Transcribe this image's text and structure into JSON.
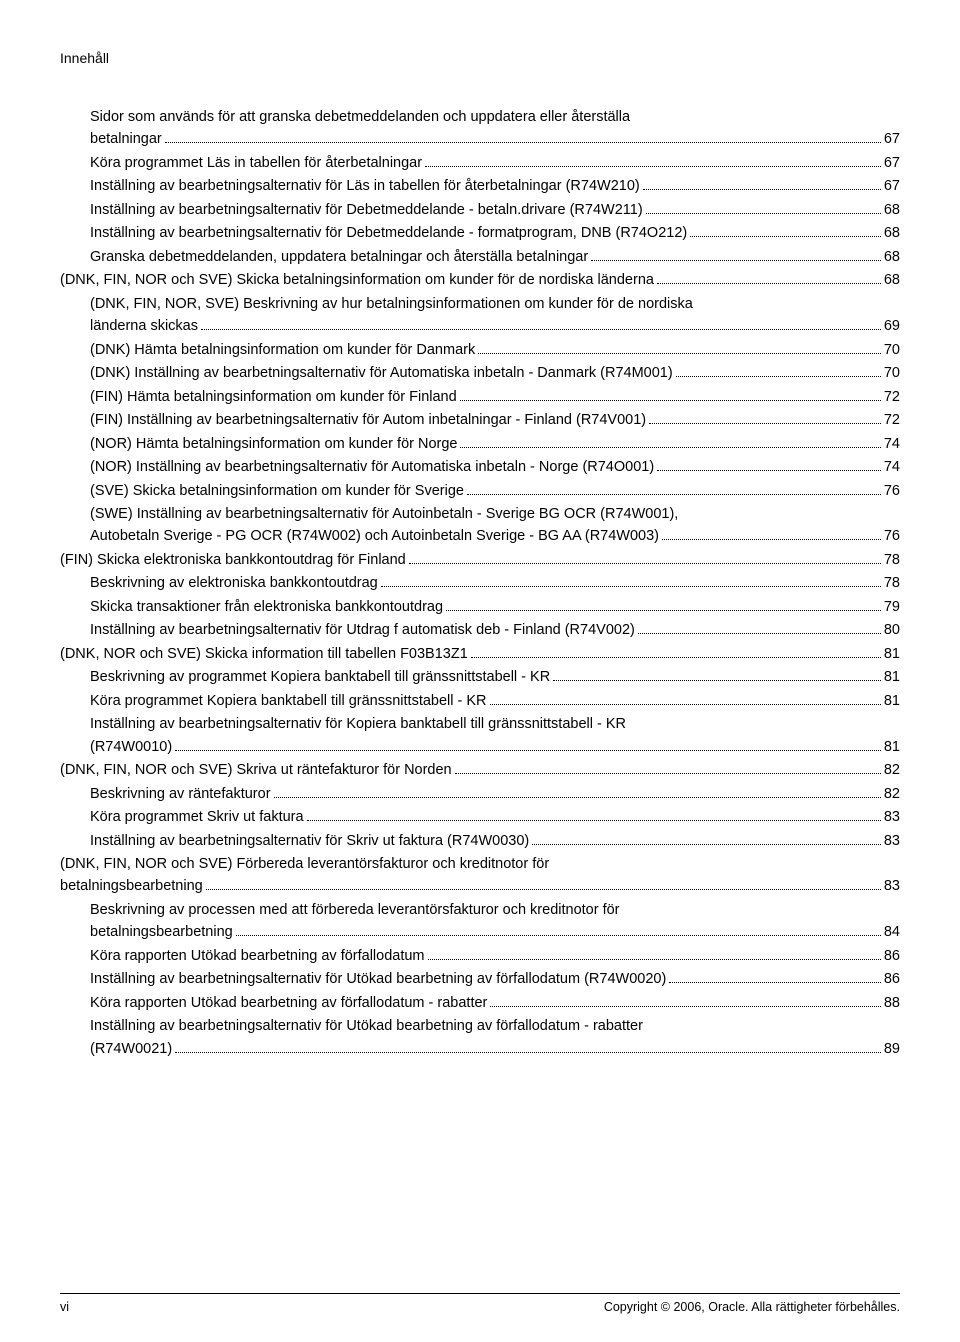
{
  "header": "Innehåll",
  "entries": [
    {
      "indent": 1,
      "text": "Sidor som används för att granska debetmeddelanden och uppdatera eller återställa",
      "wrap": true
    },
    {
      "indent": 1,
      "text": "betalningar",
      "page": "67"
    },
    {
      "indent": 1,
      "text": "Köra programmet Läs in tabellen för återbetalningar",
      "page": "67"
    },
    {
      "indent": 1,
      "text": "Inställning av bearbetningsalternativ för Läs in tabellen för återbetalningar (R74W210)",
      "page": "67"
    },
    {
      "indent": 1,
      "text": "Inställning av bearbetningsalternativ för Debetmeddelande - betaln.drivare (R74W211)",
      "page": "68"
    },
    {
      "indent": 1,
      "text": "Inställning av bearbetningsalternativ för Debetmeddelande - formatprogram, DNB (R74O212)",
      "page": "68"
    },
    {
      "indent": 1,
      "text": "Granska debetmeddelanden, uppdatera betalningar och återställa betalningar",
      "page": "68"
    },
    {
      "indent": 0,
      "text": "(DNK, FIN, NOR och SVE) Skicka betalningsinformation om kunder för de nordiska länderna",
      "page": "68"
    },
    {
      "indent": 1,
      "text": "(DNK, FIN, NOR, SVE) Beskrivning av hur betalningsinformationen om kunder för de nordiska",
      "wrap": true
    },
    {
      "indent": 1,
      "text": "länderna skickas",
      "page": "69"
    },
    {
      "indent": 1,
      "text": "(DNK) Hämta betalningsinformation om kunder för Danmark",
      "page": "70"
    },
    {
      "indent": 1,
      "text": "(DNK) Inställning av bearbetningsalternativ för Automatiska inbetaln - Danmark (R74M001)",
      "page": "70"
    },
    {
      "indent": 1,
      "text": "(FIN) Hämta betalningsinformation om kunder för Finland",
      "page": "72"
    },
    {
      "indent": 1,
      "text": "(FIN) Inställning av bearbetningsalternativ för Autom inbetalningar - Finland (R74V001)",
      "page": "72"
    },
    {
      "indent": 1,
      "text": "(NOR) Hämta betalningsinformation om kunder för Norge",
      "page": "74"
    },
    {
      "indent": 1,
      "text": "(NOR) Inställning av bearbetningsalternativ för Automatiska inbetaln - Norge (R74O001)",
      "page": "74"
    },
    {
      "indent": 1,
      "text": "(SVE) Skicka betalningsinformation om kunder för Sverige",
      "page": "76"
    },
    {
      "indent": 1,
      "text": "(SWE) Inställning av bearbetningsalternativ för Autoinbetaln - Sverige BG OCR (R74W001),",
      "wrap": true
    },
    {
      "indent": 1,
      "text": "Autobetaln Sverige - PG OCR (R74W002) och Autoinbetaln Sverige - BG AA (R74W003)",
      "page": "76"
    },
    {
      "indent": 0,
      "text": "(FIN) Skicka elektroniska bankkontoutdrag för Finland",
      "page": "78"
    },
    {
      "indent": 1,
      "text": "Beskrivning av elektroniska bankkontoutdrag",
      "page": "78"
    },
    {
      "indent": 1,
      "text": "Skicka transaktioner från elektroniska bankkontoutdrag",
      "page": "79"
    },
    {
      "indent": 1,
      "text": "Inställning av bearbetningsalternativ för Utdrag f automatisk deb - Finland (R74V002)",
      "page": "80"
    },
    {
      "indent": 0,
      "text": "(DNK, NOR och SVE) Skicka information till tabellen F03B13Z1",
      "page": "81"
    },
    {
      "indent": 1,
      "text": "Beskrivning av programmet Kopiera banktabell till gränssnittstabell - KR",
      "page": "81"
    },
    {
      "indent": 1,
      "text": "Köra programmet Kopiera banktabell till gränssnittstabell - KR",
      "page": "81"
    },
    {
      "indent": 1,
      "text": "Inställning av bearbetningsalternativ för Kopiera banktabell till gränssnittstabell - KR",
      "wrap": true
    },
    {
      "indent": 1,
      "text": "(R74W0010)",
      "page": "81"
    },
    {
      "indent": 0,
      "text": "(DNK, FIN, NOR och SVE) Skriva ut räntefakturor för Norden",
      "page": "82"
    },
    {
      "indent": 1,
      "text": "Beskrivning av räntefakturor",
      "page": "82"
    },
    {
      "indent": 1,
      "text": "Köra programmet Skriv ut faktura",
      "page": "83"
    },
    {
      "indent": 1,
      "text": "Inställning av bearbetningsalternativ för Skriv ut faktura (R74W0030)",
      "page": "83"
    },
    {
      "indent": 0,
      "text": "(DNK, FIN, NOR och SVE) Förbereda leverantörsfakturor och kreditnotor för",
      "wrap": true
    },
    {
      "indent": 0,
      "text": "betalningsbearbetning",
      "page": "83"
    },
    {
      "indent": 1,
      "text": "Beskrivning av processen med att förbereda leverantörsfakturor och kreditnotor för",
      "wrap": true
    },
    {
      "indent": 1,
      "text": "betalningsbearbetning",
      "page": "84"
    },
    {
      "indent": 1,
      "text": "Köra rapporten Utökad bearbetning av förfallodatum",
      "page": "86"
    },
    {
      "indent": 1,
      "text": "Inställning av bearbetningsalternativ för Utökad bearbetning av förfallodatum (R74W0020)",
      "page": "86"
    },
    {
      "indent": 1,
      "text": "Köra rapporten Utökad bearbetning av förfallodatum - rabatter",
      "page": "88"
    },
    {
      "indent": 1,
      "text": "Inställning av bearbetningsalternativ för Utökad bearbetning av förfallodatum - rabatter",
      "wrap": true
    },
    {
      "indent": 1,
      "text": "(R74W0021)",
      "page": "89"
    }
  ],
  "footer": {
    "left": "vi",
    "right": "Copyright © 2006, Oracle. Alla rättigheter förbehålles."
  }
}
